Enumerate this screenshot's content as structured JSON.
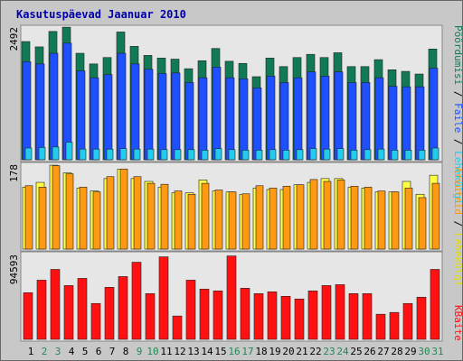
{
  "chart_data": [
    {
      "type": "bar",
      "title": "Kasutuspäevad Jaanuar 2010",
      "ylabel_tick": "2492",
      "ylim": [
        0,
        2492
      ],
      "categories": [
        "1",
        "2",
        "3",
        "4",
        "5",
        "6",
        "7",
        "8",
        "9",
        "10",
        "11",
        "12",
        "13",
        "14",
        "15",
        "16",
        "17",
        "18",
        "19",
        "20",
        "21",
        "22",
        "23",
        "24",
        "25",
        "26",
        "27",
        "28",
        "29",
        "30",
        "31"
      ],
      "series": [
        {
          "name": "Pöördumisi",
          "color": "#117a55",
          "values": [
            2220,
            2120,
            2410,
            2490,
            2000,
            1800,
            1920,
            2400,
            2130,
            1960,
            1910,
            1890,
            1710,
            1860,
            2090,
            1850,
            1810,
            1560,
            1910,
            1750,
            1920,
            1980,
            1920,
            2010,
            1750,
            1750,
            1880,
            1690,
            1660,
            1610,
            2080
          ]
        },
        {
          "name": "Faile",
          "color": "#1e50ff",
          "values": [
            1840,
            1800,
            2000,
            2190,
            1670,
            1540,
            1600,
            2000,
            1800,
            1700,
            1620,
            1630,
            1450,
            1540,
            1740,
            1540,
            1520,
            1350,
            1570,
            1450,
            1540,
            1650,
            1570,
            1650,
            1450,
            1450,
            1540,
            1380,
            1370,
            1370,
            1720
          ]
        },
        {
          "name": "Lehekülgi",
          "color": "#22ccee",
          "values": [
            220,
            230,
            240,
            330,
            200,
            200,
            200,
            210,
            200,
            200,
            190,
            190,
            190,
            180,
            210,
            190,
            180,
            180,
            190,
            180,
            190,
            210,
            200,
            210,
            180,
            190,
            200,
            180,
            180,
            180,
            220
          ]
        }
      ]
    },
    {
      "type": "bar",
      "ylabel_tick": "178",
      "ylim": [
        0,
        178
      ],
      "categories": [
        "1",
        "2",
        "3",
        "4",
        "5",
        "6",
        "7",
        "8",
        "9",
        "10",
        "11",
        "12",
        "13",
        "14",
        "15",
        "16",
        "17",
        "18",
        "19",
        "20",
        "21",
        "22",
        "23",
        "24",
        "25",
        "26",
        "27",
        "28",
        "29",
        "30",
        "31"
      ],
      "series": [
        {
          "name": "Lehekülgi",
          "color": "#ffff44",
          "values": [
            130,
            140,
            176,
            160,
            128,
            122,
            148,
            168,
            148,
            142,
            130,
            118,
            118,
            145,
            122,
            120,
            115,
            128,
            125,
            125,
            135,
            140,
            148,
            148,
            130,
            128,
            120,
            120,
            142,
            115,
            155
          ]
        },
        {
          "name": "Arvuteid",
          "color": "#ff9911",
          "values": [
            133,
            130,
            175,
            158,
            130,
            120,
            152,
            168,
            152,
            138,
            136,
            122,
            115,
            138,
            124,
            120,
            116,
            133,
            128,
            132,
            135,
            146,
            142,
            145,
            132,
            130,
            122,
            120,
            128,
            108,
            138
          ]
        }
      ]
    },
    {
      "type": "bar",
      "ylabel_tick": "94593",
      "ylim": [
        0,
        94593
      ],
      "categories": [
        "1",
        "2",
        "3",
        "4",
        "5",
        "6",
        "7",
        "8",
        "9",
        "10",
        "11",
        "12",
        "13",
        "14",
        "15",
        "16",
        "17",
        "18",
        "19",
        "20",
        "21",
        "22",
        "23",
        "24",
        "25",
        "26",
        "27",
        "28",
        "29",
        "30",
        "31"
      ],
      "series": [
        {
          "name": "KBaite",
          "color": "#ff1111",
          "values": [
            52000,
            66000,
            78000,
            60000,
            68000,
            40000,
            58000,
            70000,
            86000,
            51000,
            92000,
            26000,
            66000,
            56000,
            54000,
            93000,
            57000,
            51000,
            53000,
            48000,
            45000,
            54000,
            60000,
            61000,
            51000,
            51000,
            28000,
            30000,
            40000,
            47000,
            78000
          ]
        }
      ]
    }
  ],
  "legend": {
    "top_sep_1": " / ",
    "top_sep_2": " / ",
    "mid_sep": " / "
  },
  "colors": {
    "page_bg": "#c8c8c8",
    "plot_bg": "#e6e6e6",
    "weekend": "#228855",
    "weekday": "#000000",
    "title": "#0000aa"
  },
  "weekend_days": [
    "2",
    "3",
    "9",
    "10",
    "16",
    "17",
    "23",
    "24",
    "30",
    "31"
  ]
}
